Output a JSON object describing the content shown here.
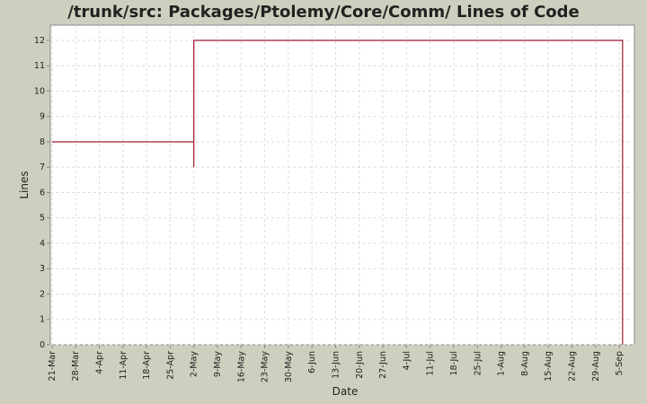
{
  "chart_data": {
    "type": "line",
    "title": "/trunk/src: Packages/Ptolemy/Core/Comm/ Lines of Code",
    "xlabel": "Date",
    "ylabel": "Lines",
    "x_tick_labels": [
      "21-Mar",
      "28-Mar",
      "4-Apr",
      "11-Apr",
      "18-Apr",
      "25-Apr",
      "2-May",
      "9-May",
      "16-May",
      "23-May",
      "30-May",
      "6-Jun",
      "13-Jun",
      "20-Jun",
      "27-Jun",
      "4-Jul",
      "11-Jul",
      "18-Jul",
      "25-Jul",
      "1-Aug",
      "8-Aug",
      "15-Aug",
      "22-Aug",
      "29-Aug",
      "5-Sep"
    ],
    "x_range_days": [
      -0.5,
      172.5
    ],
    "y_ticks": [
      "0",
      "1",
      "2",
      "3",
      "4",
      "5",
      "6",
      "7",
      "8",
      "9",
      "10",
      "11",
      "12"
    ],
    "ylim": [
      0,
      12.6
    ],
    "grid": true,
    "series": [
      {
        "color": "#9b1b30",
        "points": [
          {
            "x": "21-Mar",
            "y": 8
          },
          {
            "x": "2-May",
            "y": 8
          },
          {
            "x": "2-May",
            "y": 7
          },
          {
            "x": "2-May",
            "y": 12
          },
          {
            "x": "6-Sep",
            "y": 12
          },
          {
            "x": "6-Sep",
            "y": 0
          }
        ]
      }
    ]
  }
}
